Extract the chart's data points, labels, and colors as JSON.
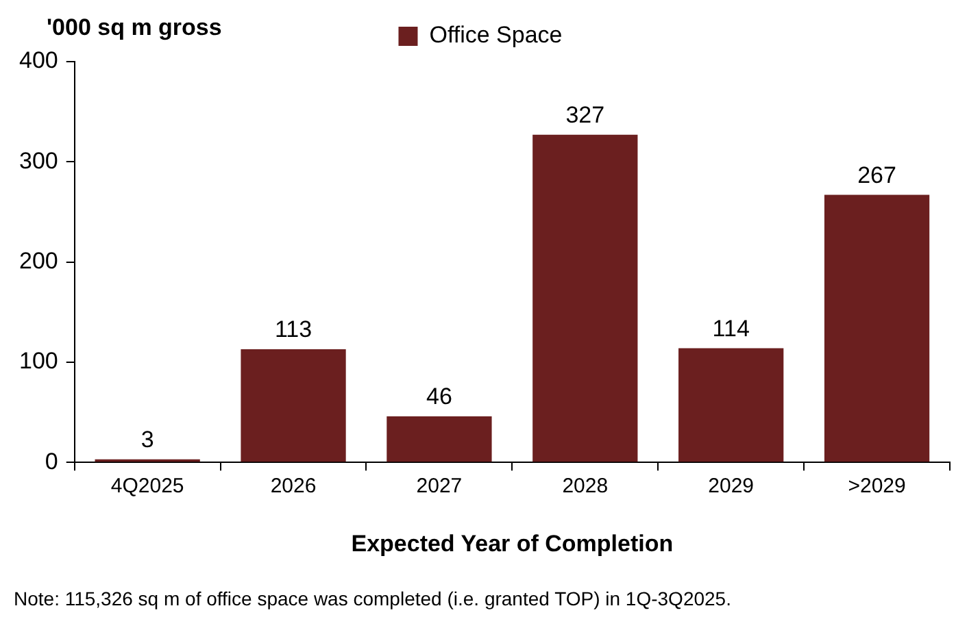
{
  "chart_data": {
    "type": "bar",
    "ylabel": "'000 sq m gross",
    "xlabel": "Expected Year of Completion",
    "categories": [
      "4Q2025",
      "2026",
      "2027",
      "2028",
      "2029",
      ">2029"
    ],
    "series": [
      {
        "name": "Office Space",
        "color": "#6b1f1f",
        "values": [
          3,
          113,
          46,
          327,
          114,
          267
        ]
      }
    ],
    "ylim": [
      0,
      400
    ],
    "yticks": [
      0,
      100,
      200,
      300,
      400
    ],
    "grid": false,
    "legend": "top",
    "data_labels": true,
    "annotations": [
      "Note: 115,326 sq m of office space was completed (i.e. granted TOP) in 1Q-3Q2025."
    ]
  }
}
